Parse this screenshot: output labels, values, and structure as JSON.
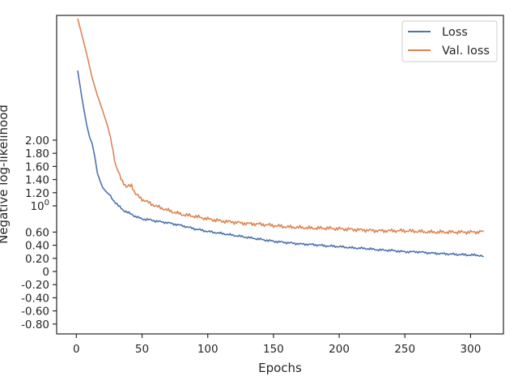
{
  "chart_data": {
    "type": "line",
    "title": "",
    "xlabel": "Epochs",
    "ylabel": "Negative log-likelihood",
    "xlim": [
      -15,
      325
    ],
    "ylim": [
      -0.95,
      3.9
    ],
    "x_ticks": [
      0,
      50,
      100,
      150,
      200,
      250,
      300
    ],
    "y_tick_labels_linear": [
      {
        "value": 2.0,
        "label": "2.00"
      },
      {
        "value": 1.8,
        "label": "1.80"
      },
      {
        "value": 1.6,
        "label": "1.60"
      },
      {
        "value": 1.4,
        "label": "1.40"
      },
      {
        "value": 1.2,
        "label": "1.20"
      },
      {
        "value": 0.6,
        "label": "0.60"
      },
      {
        "value": 0.4,
        "label": "0.40"
      },
      {
        "value": 0.2,
        "label": "0.20"
      },
      {
        "value": 0.0,
        "label": "0"
      },
      {
        "value": -0.2,
        "label": "-0.20"
      },
      {
        "value": -0.4,
        "label": "-0.40"
      },
      {
        "value": -0.6,
        "label": "-0.60"
      },
      {
        "value": -0.8,
        "label": "-0.80"
      }
    ],
    "y_tick_label_one": {
      "value": 1.0,
      "base": "10",
      "exponent": "0"
    },
    "grid": false,
    "legend_position": "top-right",
    "series": [
      {
        "name": "Loss",
        "color": "#4c72b0",
        "x": [
          1,
          5,
          8,
          10,
          12,
          14,
          16,
          18,
          20,
          22,
          25,
          28,
          32,
          36,
          40,
          45,
          50,
          55,
          60,
          70,
          80,
          90,
          100,
          110,
          120,
          130,
          140,
          150,
          160,
          170,
          180,
          190,
          200,
          210,
          220,
          230,
          240,
          250,
          260,
          270,
          280,
          290,
          300,
          305,
          310
        ],
        "y": [
          3.06,
          2.55,
          2.22,
          2.05,
          1.95,
          1.75,
          1.5,
          1.38,
          1.28,
          1.23,
          1.17,
          1.09,
          1.0,
          0.93,
          0.89,
          0.84,
          0.8,
          0.79,
          0.77,
          0.74,
          0.7,
          0.65,
          0.61,
          0.58,
          0.55,
          0.52,
          0.49,
          0.46,
          0.44,
          0.42,
          0.41,
          0.39,
          0.38,
          0.36,
          0.35,
          0.33,
          0.32,
          0.3,
          0.3,
          0.28,
          0.27,
          0.26,
          0.25,
          0.25,
          0.23
        ]
      },
      {
        "name": "Val. loss",
        "color": "#dd8452",
        "x": [
          1,
          4,
          8,
          12,
          16,
          20,
          24,
          27,
          30,
          34,
          38,
          40,
          42,
          45,
          50,
          55,
          60,
          70,
          80,
          90,
          100,
          110,
          120,
          130,
          140,
          150,
          160,
          170,
          180,
          190,
          200,
          210,
          220,
          230,
          240,
          250,
          260,
          270,
          280,
          290,
          300,
          305,
          310
        ],
        "y": [
          3.85,
          3.62,
          3.3,
          2.95,
          2.68,
          2.45,
          2.2,
          1.95,
          1.6,
          1.42,
          1.28,
          1.3,
          1.32,
          1.18,
          1.1,
          1.05,
          1.0,
          0.93,
          0.87,
          0.84,
          0.8,
          0.77,
          0.75,
          0.73,
          0.72,
          0.7,
          0.68,
          0.67,
          0.66,
          0.66,
          0.65,
          0.64,
          0.63,
          0.62,
          0.62,
          0.62,
          0.61,
          0.6,
          0.6,
          0.6,
          0.6,
          0.6,
          0.61
        ]
      }
    ]
  }
}
